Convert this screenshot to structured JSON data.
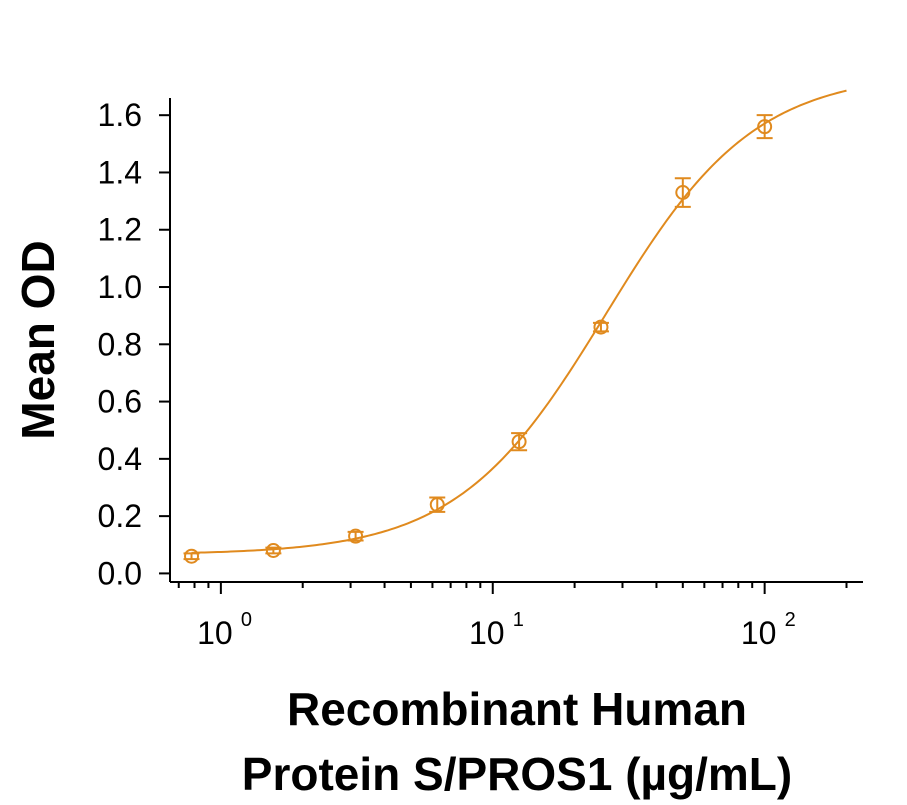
{
  "chart_data": {
    "type": "scatter",
    "title": "",
    "xlabel_lines": [
      "Recombinant Human",
      "Protein S/PROS1 (µg/mL)"
    ],
    "ylabel": "Mean OD",
    "x_scale": "log",
    "xlim": [
      0.65,
      230
    ],
    "ylim": [
      -0.03,
      1.66
    ],
    "y_ticks": [
      "0.0",
      "0.2",
      "0.4",
      "0.6",
      "0.8",
      "1.0",
      "1.2",
      "1.4",
      "1.6"
    ],
    "x_ticks": [
      {
        "base": "10",
        "exp": "0"
      },
      {
        "base": "10",
        "exp": "1"
      },
      {
        "base": "10",
        "exp": "2"
      }
    ],
    "grid": false,
    "color": "#E08A1E",
    "series": [
      {
        "marker": "open-circle",
        "x": [
          0.78,
          1.56,
          3.13,
          6.25,
          12.5,
          25,
          50,
          100
        ],
        "y": [
          0.06,
          0.08,
          0.13,
          0.24,
          0.46,
          0.86,
          1.33,
          1.56
        ],
        "yerr": [
          0.01,
          0.01,
          0.015,
          0.025,
          0.03,
          0.015,
          0.05,
          0.04
        ]
      }
    ],
    "fit": {
      "model": "4PL",
      "x_range": [
        0.78,
        200
      ]
    }
  }
}
